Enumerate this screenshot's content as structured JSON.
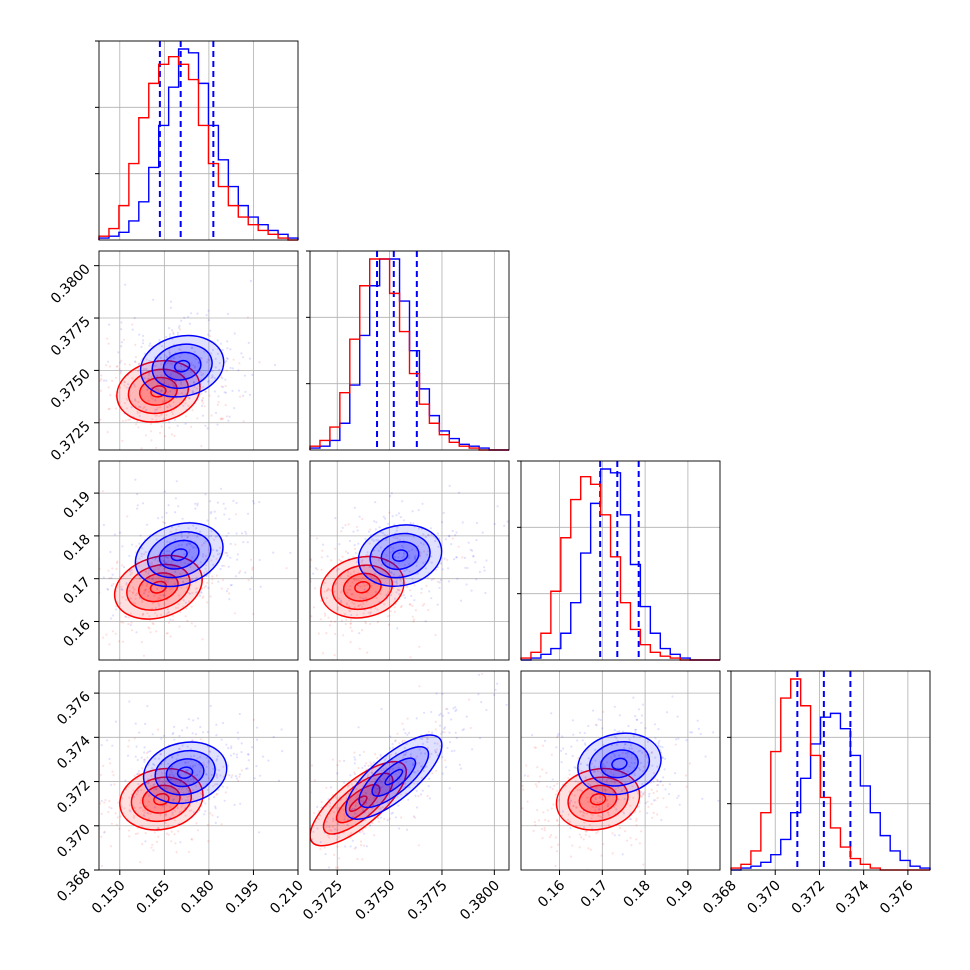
{
  "colors": {
    "series_a": "#0000ff",
    "series_b": "#ff0000",
    "grid": "#b0b0b0"
  },
  "chart_data": {
    "type": "corner",
    "grid": true,
    "series": [
      {
        "color": "#0000ff",
        "hist": [
          {
            "counts": [
              1,
              2,
              4,
              10,
              20,
              38,
              60,
              80,
              100,
              98,
              82,
              60,
              42,
              28,
              18,
              12,
              8,
              5,
              3,
              1
            ],
            "quantiles": [
              0.1635,
              0.1705,
              0.1815
            ]
          },
          {
            "counts": [
              1,
              2,
              5,
              14,
              34,
              60,
              86,
              100,
              100,
              78,
              52,
              32,
              18,
              10,
              6,
              3,
              2,
              1,
              0,
              0
            ],
            "quantiles": [
              0.3744,
              0.3752,
              0.3763
            ]
          },
          {
            "counts": [
              0,
              1,
              3,
              6,
              14,
              30,
              56,
              82,
              100,
              98,
              76,
              50,
              28,
              14,
              6,
              3,
              1,
              0,
              0,
              0
            ],
            "quantiles": [
              0.1695,
              0.1735,
              0.1785
            ]
          },
          {
            "counts": [
              0,
              1,
              2,
              4,
              8,
              16,
              30,
              48,
              66,
              80,
              82,
              74,
              60,
              44,
              30,
              18,
              10,
              5,
              2,
              1
            ],
            "quantiles": [
              0.371,
              0.3722,
              0.3734
            ]
          }
        ],
        "centers": {
          "0-1": [
            0.171,
            0.3752
          ],
          "0-2": [
            0.17,
            0.1756
          ],
          "1-2": [
            0.3755,
            0.1754
          ],
          "0-3": [
            0.172,
            0.3724
          ],
          "1-3": [
            0.3752,
            0.3722
          ],
          "2-3": [
            0.174,
            0.3728
          ]
        }
      },
      {
        "color": "#ff0000",
        "hist": [
          {
            "counts": [
              2,
              6,
              18,
              40,
              64,
              82,
              92,
              96,
              92,
              84,
              60,
              40,
              28,
              18,
              12,
              8,
              5,
              3,
              1,
              0
            ],
            "quantiles": []
          },
          {
            "counts": [
              2,
              5,
              12,
              30,
              58,
              86,
              100,
              100,
              82,
              62,
              40,
              24,
              14,
              8,
              4,
              2,
              1,
              0,
              0,
              0
            ],
            "quantiles": []
          },
          {
            "counts": [
              1,
              4,
              14,
              36,
              64,
              84,
              96,
              92,
              76,
              54,
              30,
              16,
              8,
              4,
              2,
              1,
              0,
              0,
              0,
              0
            ],
            "quantiles": []
          },
          {
            "counts": [
              1,
              3,
              10,
              30,
              62,
              90,
              100,
              86,
              60,
              38,
              22,
              12,
              6,
              3,
              1,
              0,
              0,
              0,
              0,
              0
            ],
            "quantiles": []
          }
        ],
        "centers": {
          "0-1": [
            0.163,
            0.374
          ],
          "0-2": [
            0.163,
            0.168
          ],
          "1-2": [
            0.3737,
            0.168
          ],
          "0-3": [
            0.164,
            0.3712
          ],
          "1-3": [
            0.3735,
            0.371
          ],
          "2-3": [
            0.169,
            0.3712
          ]
        }
      }
    ],
    "axes": [
      {
        "lim": [
          0.143,
          0.21
        ],
        "ticks": [
          0.15,
          0.165,
          0.18,
          0.195,
          0.21
        ],
        "tick_labels": [
          "0.150",
          "0.165",
          "0.180",
          "0.195",
          "0.210"
        ]
      },
      {
        "lim": [
          0.3712,
          0.3807
        ],
        "ticks": [
          0.3725,
          0.375,
          0.3775,
          0.38
        ],
        "tick_labels": [
          "0.3725",
          "0.3750",
          "0.3775",
          "0.3800"
        ]
      },
      {
        "lim": [
          0.151,
          0.1975
        ],
        "ticks": [
          0.16,
          0.17,
          0.18,
          0.19
        ],
        "tick_labels": [
          "0.16",
          "0.17",
          "0.18",
          "0.19"
        ]
      },
      {
        "lim": [
          0.368,
          0.377
        ],
        "ticks": [
          0.368,
          0.37,
          0.372,
          0.374,
          0.376
        ],
        "tick_labels": [
          "0.368",
          "0.370",
          "0.372",
          "0.374",
          "0.376"
        ]
      }
    ]
  }
}
